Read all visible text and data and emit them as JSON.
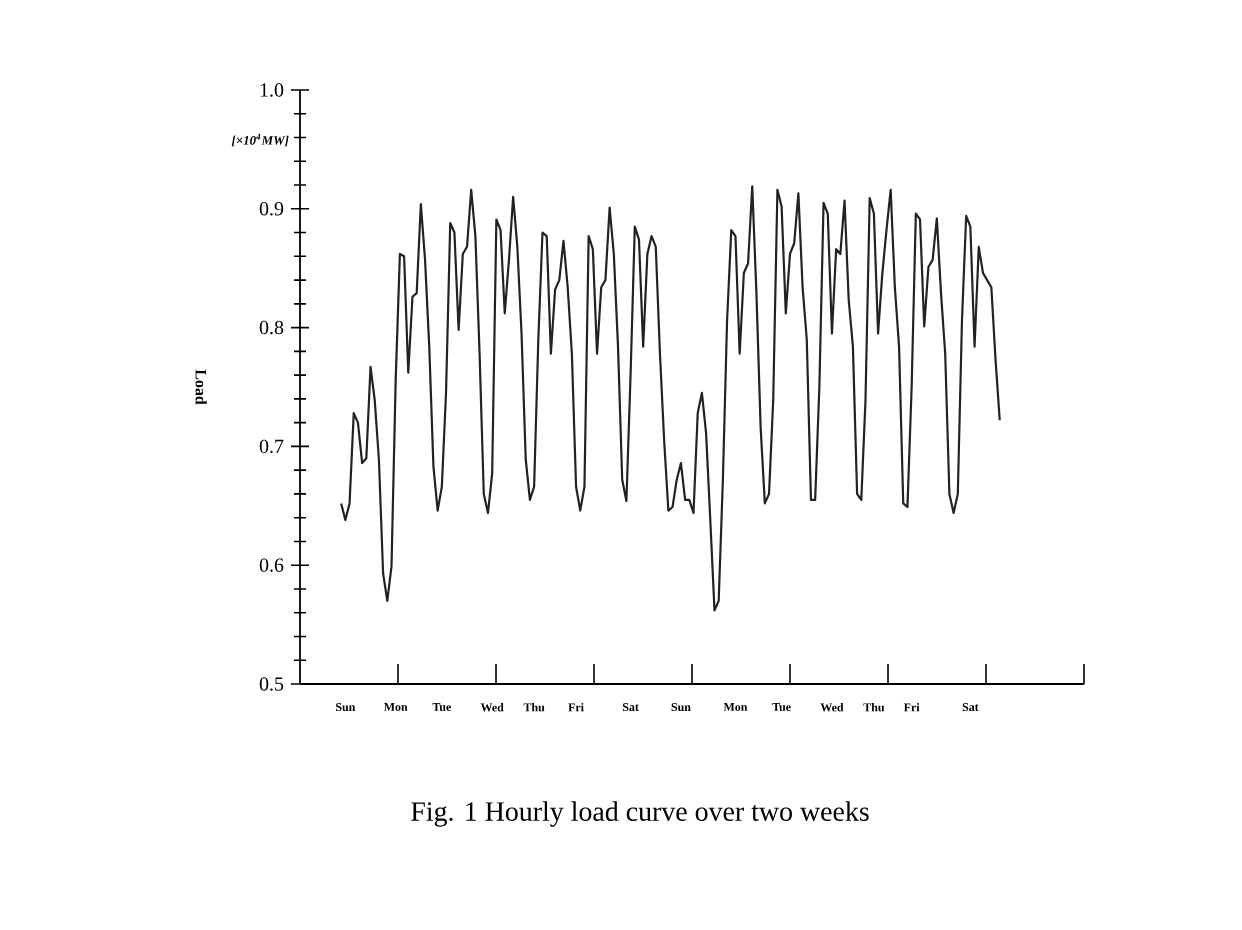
{
  "chart_data": {
    "type": "line",
    "title": "Fig. 1    Hourly load curve over two weeks",
    "ylabel": "Load",
    "annotations": [
      "[×10$^{4}$MW]"
    ],
    "ylim": [
      0.5,
      1.0
    ],
    "categories": [
      null,
      "Sun",
      null,
      null,
      null,
      null,
      null,
      null,
      null,
      null,
      null,
      null,
      null,
      "Mon",
      null,
      null,
      null,
      null,
      null,
      null,
      null,
      null,
      null,
      null,
      "Tue",
      null,
      null,
      null,
      null,
      null,
      null,
      null,
      null,
      null,
      null,
      null,
      "Wed",
      null,
      null,
      null,
      null,
      null,
      null,
      null,
      null,
      null,
      "Thu",
      null,
      null,
      null,
      null,
      null,
      null,
      null,
      null,
      null,
      "Fri",
      null,
      null,
      null,
      null,
      null,
      null,
      null,
      null,
      null,
      null,
      null,
      null,
      "Sat",
      null,
      null,
      null,
      null,
      null,
      null,
      null,
      null,
      null,
      null,
      null,
      "Sun",
      null,
      null,
      null,
      null,
      null,
      null,
      null,
      null,
      null,
      null,
      null,
      null,
      "Mon",
      null,
      null,
      null,
      null,
      null,
      null,
      null,
      null,
      null,
      null,
      "Tue",
      null,
      null,
      null,
      null,
      null,
      null,
      null,
      null,
      null,
      null,
      null,
      "Wed",
      null,
      null,
      null,
      null,
      null,
      null,
      null,
      null,
      null,
      "Thu",
      null,
      null,
      null,
      null,
      null,
      null,
      null,
      null,
      "Fri",
      null,
      null,
      null,
      null,
      null,
      null,
      null,
      null,
      null,
      null,
      null,
      null,
      null,
      "Sat",
      null,
      null,
      null,
      null,
      null,
      null,
      null
    ],
    "yticks": [
      0.5,
      0.6,
      0.7,
      0.8,
      0.9,
      {
        "value": 1.0,
        "label": "1.0"
      }
    ],
    "grid": false,
    "line_style": "solid",
    "marker": "none",
    "series": [
      {
        "color": "#222222",
        "values": [
          0.652,
          0.638,
          0.652,
          0.728,
          0.72,
          0.686,
          0.69,
          0.767,
          0.739,
          0.689,
          0.593,
          0.57,
          0.599,
          0.756,
          0.862,
          0.86,
          0.762,
          0.826,
          0.829,
          0.904,
          0.857,
          0.784,
          0.683,
          0.646,
          0.666,
          0.745,
          0.888,
          0.88,
          0.798,
          0.862,
          0.868,
          0.916,
          0.877,
          0.778,
          0.66,
          0.644,
          0.677,
          0.891,
          0.882,
          0.812,
          0.857,
          0.91,
          0.868,
          0.795,
          0.689,
          0.655,
          0.666,
          0.79,
          0.88,
          0.877,
          0.778,
          0.832,
          0.84,
          0.873,
          0.834,
          0.778,
          0.666,
          0.646,
          0.666,
          0.877,
          0.866,
          0.778,
          0.834,
          0.84,
          0.901,
          0.862,
          0.784,
          0.672,
          0.654,
          0.761,
          0.885,
          0.874,
          0.784,
          0.862,
          0.877,
          0.868,
          0.778,
          0.705,
          0.646,
          0.649,
          0.672,
          0.686,
          0.655,
          0.655,
          0.644,
          0.728,
          0.745,
          0.711,
          0.638,
          0.562,
          0.57,
          0.672,
          0.806,
          0.882,
          0.877,
          0.778,
          0.846,
          0.854,
          0.919,
          0.829,
          0.716,
          0.652,
          0.66,
          0.739,
          0.916,
          0.902,
          0.812,
          0.862,
          0.871,
          0.913,
          0.834,
          0.79,
          0.655,
          0.655,
          0.75,
          0.905,
          0.896,
          0.795,
          0.866,
          0.862,
          0.907,
          0.823,
          0.784,
          0.66,
          0.655,
          0.739,
          0.909,
          0.896,
          0.795,
          0.845,
          0.882,
          0.916,
          0.834,
          0.784,
          0.652,
          0.649,
          0.75,
          0.896,
          0.891,
          0.801,
          0.851,
          0.857,
          0.892,
          0.829,
          0.778,
          0.66,
          0.644,
          0.66,
          0.806,
          0.894,
          0.885,
          0.784,
          0.868,
          0.846,
          0.84,
          0.834,
          0.773,
          0.722
        ]
      }
    ]
  }
}
